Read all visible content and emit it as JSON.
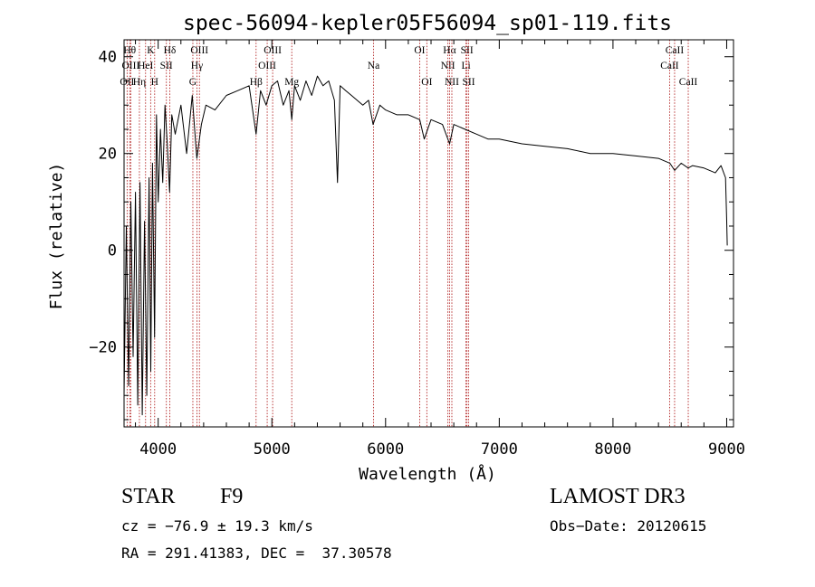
{
  "chart_data": {
    "type": "line",
    "title": "spec-56094-kepler05F56094_sp01-119.fits",
    "xlabel": "Wavelength (Å)",
    "ylabel": "Flux (relative)",
    "xlim": [
      3700,
      9060
    ],
    "ylim": [
      -36.5,
      43.5
    ],
    "xticks": [
      4000,
      5000,
      6000,
      7000,
      8000,
      9000
    ],
    "yticks": [
      -20,
      0,
      20,
      40
    ],
    "series": [
      {
        "name": "spectrum",
        "x": [
          3700,
          3720,
          3740,
          3760,
          3780,
          3800,
          3820,
          3840,
          3860,
          3880,
          3900,
          3920,
          3935,
          3950,
          3968,
          3985,
          4000,
          4020,
          4040,
          4060,
          4080,
          4101,
          4120,
          4150,
          4200,
          4250,
          4300,
          4330,
          4340,
          4380,
          4420,
          4500,
          4600,
          4700,
          4800,
          4861,
          4900,
          4950,
          5000,
          5050,
          5100,
          5150,
          5175,
          5200,
          5250,
          5300,
          5350,
          5400,
          5450,
          5500,
          5550,
          5577,
          5600,
          5650,
          5700,
          5750,
          5800,
          5850,
          5890,
          5950,
          6000,
          6100,
          6200,
          6300,
          6340,
          6400,
          6500,
          6563,
          6600,
          6700,
          6800,
          6900,
          7000,
          7200,
          7400,
          7600,
          7800,
          8000,
          8200,
          8400,
          8500,
          8542,
          8600,
          8662,
          8700,
          8800,
          8900,
          8950,
          8990,
          9000,
          9005
        ],
        "y": [
          -30,
          5,
          -28,
          10,
          -22,
          12,
          -32,
          14,
          -34,
          6,
          -30,
          15,
          -25,
          18,
          -18,
          28,
          10,
          25,
          14,
          30,
          22,
          12,
          28,
          24,
          30,
          20,
          32,
          22,
          19,
          26,
          30,
          29,
          32,
          33,
          34,
          24,
          33,
          30,
          34,
          35,
          30,
          33,
          27,
          34,
          31,
          35,
          32,
          36,
          34,
          35,
          31,
          14,
          34,
          33,
          32,
          31,
          30,
          31,
          26,
          30,
          29,
          28,
          28,
          27,
          23,
          27,
          26,
          22,
          26,
          25,
          24,
          23,
          23,
          22,
          21.5,
          21,
          20,
          20,
          19.5,
          19,
          18,
          16.5,
          18,
          17,
          17.5,
          17,
          16,
          17.5,
          15,
          6,
          1
        ]
      }
    ],
    "lines": [
      {
        "label": "OII",
        "wave": 3727,
        "row": 3
      },
      {
        "label": "Hθ",
        "wave": 3750,
        "row": 1
      },
      {
        "label": "OIII",
        "wave": 3759,
        "row": 2
      },
      {
        "label": "Hη",
        "wave": 3835,
        "row": 3
      },
      {
        "label": "HeI",
        "wave": 3889,
        "row": 2
      },
      {
        "label": "K",
        "wave": 3934,
        "row": 1
      },
      {
        "label": "H",
        "wave": 3969,
        "row": 3
      },
      {
        "label": "SII",
        "wave": 4072,
        "row": 2
      },
      {
        "label": "Hδ",
        "wave": 4102,
        "row": 1
      },
      {
        "label": "G",
        "wave": 4305,
        "row": 3
      },
      {
        "label": "Hγ",
        "wave": 4341,
        "row": 2
      },
      {
        "label": "OIII",
        "wave": 4363,
        "row": 1
      },
      {
        "label": "Hβ",
        "wave": 4861,
        "row": 3
      },
      {
        "label": "OIII",
        "wave": 4959,
        "row": 2
      },
      {
        "label": "OIII",
        "wave": 5007,
        "row": 1
      },
      {
        "label": "Mg",
        "wave": 5175,
        "row": 3
      },
      {
        "label": "Na",
        "wave": 5894,
        "row": 2
      },
      {
        "label": "OI",
        "wave": 6300,
        "row": 1
      },
      {
        "label": "OI",
        "wave": 6363,
        "row": 3
      },
      {
        "label": "NII",
        "wave": 6548,
        "row": 2
      },
      {
        "label": "Hα",
        "wave": 6563,
        "row": 1
      },
      {
        "label": "NII",
        "wave": 6583,
        "row": 3
      },
      {
        "label": "Li",
        "wave": 6707,
        "row": 2
      },
      {
        "label": "SII",
        "wave": 6716,
        "row": 1
      },
      {
        "label": "SII",
        "wave": 6731,
        "row": 3
      },
      {
        "label": "CaII",
        "wave": 8498,
        "row": 2
      },
      {
        "label": "CaII",
        "wave": 8542,
        "row": 1
      },
      {
        "label": "CaII",
        "wave": 8662,
        "row": 3
      }
    ],
    "colors": {
      "spectrum": "#000000",
      "lines": "#b22222",
      "axes": "#000000"
    }
  },
  "info": {
    "object_type": "STAR",
    "spectral_class": "F9",
    "survey": "LAMOST DR3",
    "cz": "cz = −76.9 ± 19.3 km/s",
    "obs_date": "Obs−Date: 20120615",
    "coords": "RA = 291.41383, DEC =  37.30578"
  }
}
